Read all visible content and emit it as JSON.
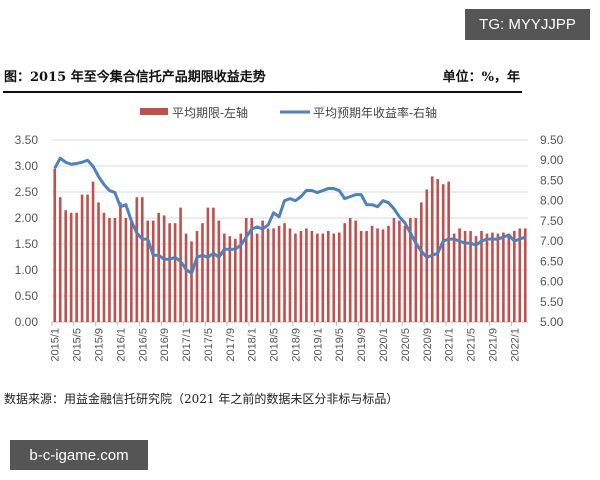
{
  "watermarks": {
    "top": "TG: MYYJJPP",
    "bottom": "b-c-igame.com"
  },
  "header": {
    "title": "图：2015 年至今集合信托产品期限收益走势",
    "unit": "单位：%，年"
  },
  "source": "数据来源：用益金融信托研究院（2021 年之前的数据未区分非标与标品）",
  "chart_data": {
    "type": "bar+line",
    "legend_position": "top",
    "grid": true,
    "colors": {
      "bar": "#c0504d",
      "line": "#4f81bd"
    },
    "y_left": {
      "ylim": [
        0,
        3.5
      ],
      "ticks": [
        "0.00",
        "0.50",
        "1.00",
        "1.50",
        "2.00",
        "2.50",
        "3.00",
        "3.50"
      ]
    },
    "y_right": {
      "ylim": [
        5,
        9.5
      ],
      "ticks": [
        "5.00",
        "5.50",
        "6.00",
        "6.50",
        "7.00",
        "7.50",
        "8.00",
        "8.50",
        "9.00",
        "9.50"
      ]
    },
    "x_tick_labels": [
      "2015/1",
      "2015/5",
      "2015/9",
      "2016/1",
      "2016/5",
      "2016/9",
      "2017/1",
      "2017/5",
      "2017/9",
      "2018/1",
      "2018/5",
      "2018/9",
      "2019/1",
      "2019/5",
      "2019/9",
      "2020/1",
      "2020/5",
      "2020/9",
      "2021/1",
      "2021/5",
      "2021/9",
      "2022/1"
    ],
    "categories": [
      "2015/1",
      "2015/2",
      "2015/3",
      "2015/4",
      "2015/5",
      "2015/6",
      "2015/7",
      "2015/8",
      "2015/9",
      "2015/10",
      "2015/11",
      "2015/12",
      "2016/1",
      "2016/2",
      "2016/3",
      "2016/4",
      "2016/5",
      "2016/6",
      "2016/7",
      "2016/8",
      "2016/9",
      "2016/10",
      "2016/11",
      "2016/12",
      "2017/1",
      "2017/2",
      "2017/3",
      "2017/4",
      "2017/5",
      "2017/6",
      "2017/7",
      "2017/8",
      "2017/9",
      "2017/10",
      "2017/11",
      "2017/12",
      "2018/1",
      "2018/2",
      "2018/3",
      "2018/4",
      "2018/5",
      "2018/6",
      "2018/7",
      "2018/8",
      "2018/9",
      "2018/10",
      "2018/11",
      "2018/12",
      "2019/1",
      "2019/2",
      "2019/3",
      "2019/4",
      "2019/5",
      "2019/6",
      "2019/7",
      "2019/8",
      "2019/9",
      "2019/10",
      "2019/11",
      "2019/12",
      "2020/1",
      "2020/2",
      "2020/3",
      "2020/4",
      "2020/5",
      "2020/6",
      "2020/7",
      "2020/8",
      "2020/9",
      "2020/10",
      "2020/11",
      "2020/12",
      "2021/1",
      "2021/2",
      "2021/3",
      "2021/4",
      "2021/5",
      "2021/6",
      "2021/7",
      "2021/8",
      "2021/9",
      "2021/10",
      "2021/11",
      "2021/12",
      "2022/1",
      "2022/2",
      "2022/3"
    ],
    "series": [
      {
        "name": "平均期限-左轴",
        "axis": "left",
        "kind": "bar",
        "values": [
          2.95,
          2.4,
          2.15,
          2.1,
          2.1,
          2.45,
          2.45,
          2.7,
          2.3,
          2.1,
          2.0,
          2.0,
          2.3,
          2.0,
          1.95,
          2.4,
          2.4,
          1.95,
          1.95,
          2.1,
          2.05,
          1.9,
          1.9,
          2.2,
          1.7,
          1.55,
          1.75,
          1.9,
          2.2,
          2.2,
          1.95,
          1.7,
          1.65,
          1.6,
          1.7,
          2.0,
          2.0,
          1.7,
          1.95,
          1.8,
          1.8,
          1.85,
          1.9,
          1.8,
          1.7,
          1.75,
          1.8,
          1.75,
          1.7,
          1.7,
          1.75,
          1.7,
          1.72,
          1.9,
          2.0,
          1.95,
          1.75,
          1.75,
          1.85,
          1.8,
          1.78,
          1.85,
          2.0,
          1.95,
          1.85,
          2.0,
          2.0,
          2.3,
          2.55,
          2.8,
          2.75,
          2.65,
          2.7,
          1.7,
          1.8,
          1.75,
          1.75,
          1.65,
          1.75,
          1.7,
          1.72,
          1.7,
          1.72,
          1.7,
          1.75,
          1.8,
          1.8
        ]
      },
      {
        "name": "平均预期年收益率-右轴",
        "axis": "right",
        "kind": "line",
        "values": [
          8.8,
          9.05,
          8.95,
          8.9,
          8.92,
          8.95,
          9.0,
          8.85,
          8.6,
          8.4,
          8.25,
          8.2,
          7.85,
          7.9,
          7.5,
          7.2,
          7.05,
          7.05,
          6.65,
          6.65,
          6.55,
          6.55,
          6.6,
          6.5,
          6.3,
          6.2,
          6.6,
          6.65,
          6.6,
          6.7,
          6.6,
          6.8,
          6.8,
          6.8,
          6.9,
          7.1,
          7.3,
          7.35,
          7.3,
          7.4,
          7.7,
          7.6,
          8.0,
          8.05,
          8.0,
          8.1,
          8.25,
          8.25,
          8.2,
          8.25,
          8.3,
          8.3,
          8.25,
          8.05,
          8.1,
          8.15,
          8.15,
          7.9,
          7.9,
          7.85,
          8.0,
          7.95,
          7.8,
          7.6,
          7.45,
          7.2,
          6.95,
          6.75,
          6.6,
          6.65,
          6.7,
          7.0,
          7.05,
          7.05,
          7.0,
          6.95,
          6.95,
          6.9,
          7.0,
          7.05,
          7.05,
          7.05,
          7.1,
          7.15,
          7.0,
          7.05,
          7.1
        ]
      }
    ]
  }
}
